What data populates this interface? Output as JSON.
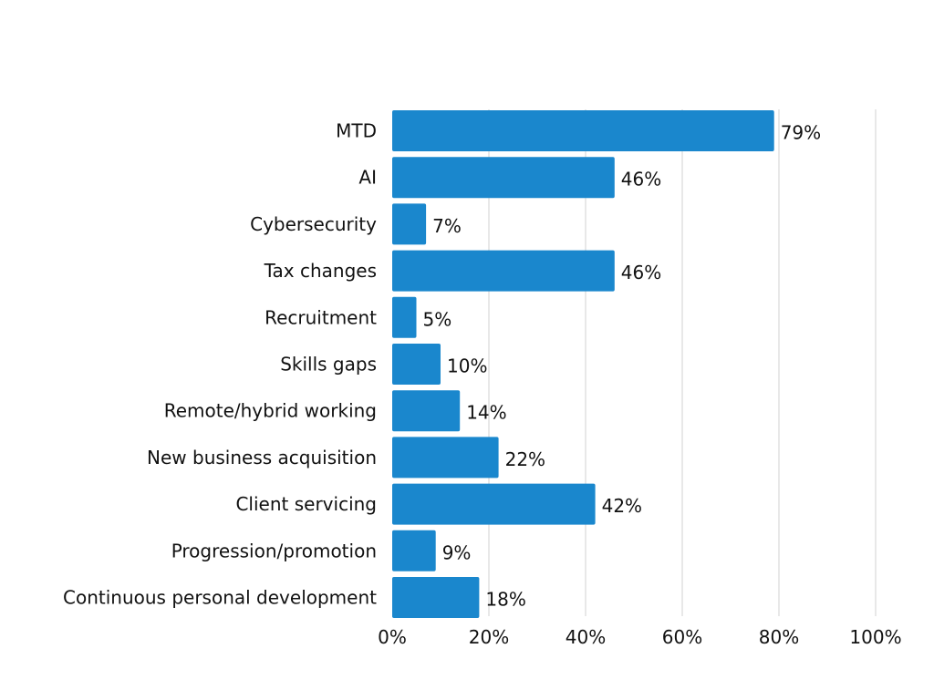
{
  "chart_data": {
    "type": "bar",
    "orientation": "horizontal",
    "categories": [
      "MTD",
      "AI",
      "Cybersecurity",
      "Tax changes",
      "Recruitment",
      "Skills gaps",
      "Remote/hybrid working",
      "New business acquisition",
      "Client servicing",
      "Progression/promotion",
      "Continuous personal development"
    ],
    "values": [
      79,
      46,
      7,
      46,
      5,
      10,
      14,
      22,
      42,
      9,
      18
    ],
    "data_labels": [
      "79%",
      "46%",
      "7%",
      "46%",
      "5%",
      "10%",
      "14%",
      "22%",
      "42%",
      "9%",
      "18%"
    ],
    "xlim": [
      0,
      100
    ],
    "xticks": [
      0,
      20,
      40,
      60,
      80,
      100
    ],
    "xtick_labels": [
      "0%",
      "20%",
      "40%",
      "60%",
      "80%",
      "100%"
    ],
    "grid": "vertical",
    "legend": "none",
    "title": "",
    "xlabel": "",
    "ylabel": "",
    "colors": {
      "bar": "#1a87cd",
      "grid": "#d0d0d0",
      "text": "#111111"
    }
  }
}
